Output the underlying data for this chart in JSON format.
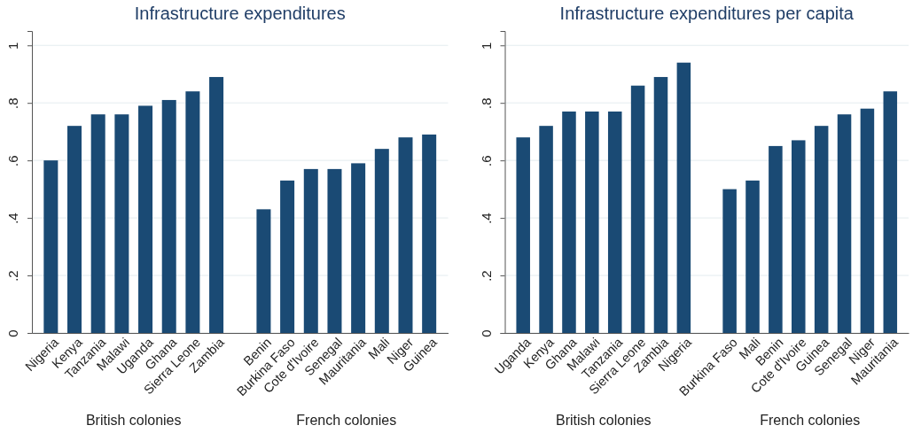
{
  "chart_data": [
    {
      "type": "bar",
      "title": "Infrastructure expenditures",
      "categories": [
        "Nigeria",
        "Kenya",
        "Tanzania",
        "Malawi",
        "Uganda",
        "Ghana",
        "Sierra Leone",
        "Zambia",
        null,
        "Benin",
        "Burkina Faso",
        "Cote d'Ivoire",
        "Senegal",
        "Mauritania",
        "Mali",
        "Niger",
        "Guinea"
      ],
      "values": [
        0.6,
        0.72,
        0.76,
        0.76,
        0.79,
        0.81,
        0.84,
        0.89,
        null,
        0.43,
        0.53,
        0.57,
        0.57,
        0.59,
        0.64,
        0.68,
        0.69
      ],
      "color": "#1a4a74",
      "ylim": [
        0,
        1.05
      ],
      "yticks": [
        {
          "value": 0,
          "label": "0"
        },
        {
          "value": 0.2,
          "label": ".2"
        },
        {
          "value": 0.4,
          "label": ".4"
        },
        {
          "value": 0.6,
          "label": ".6"
        },
        {
          "value": 0.8,
          "label": ".8"
        },
        {
          "value": 1,
          "label": "1"
        }
      ],
      "grid": "y",
      "annotations": [
        "British colonies",
        "French colonies"
      ]
    },
    {
      "type": "bar",
      "title": "Infrastructure expenditures per capita",
      "categories": [
        "Uganda",
        "Kenya",
        "Ghana",
        "Malawi",
        "Tanzania",
        "Sierra Leone",
        "Zambia",
        "Nigeria",
        null,
        "Burkina Faso",
        "Mali",
        "Benin",
        "Cote d'Ivoire",
        "Guinea",
        "Senegal",
        "Niger",
        "Mauritania"
      ],
      "values": [
        0.68,
        0.72,
        0.77,
        0.77,
        0.77,
        0.86,
        0.89,
        0.94,
        null,
        0.5,
        0.53,
        0.65,
        0.67,
        0.72,
        0.76,
        0.78,
        0.84
      ],
      "color": "#1a4a74",
      "ylim": [
        0,
        1.05
      ],
      "yticks": [
        {
          "value": 0,
          "label": "0"
        },
        {
          "value": 0.2,
          "label": ".2"
        },
        {
          "value": 0.4,
          "label": ".4"
        },
        {
          "value": 0.6,
          "label": ".6"
        },
        {
          "value": 0.8,
          "label": ".8"
        },
        {
          "value": 1,
          "label": "1"
        }
      ],
      "grid": "y",
      "annotations": [
        "British colonies",
        "French colonies"
      ]
    }
  ]
}
